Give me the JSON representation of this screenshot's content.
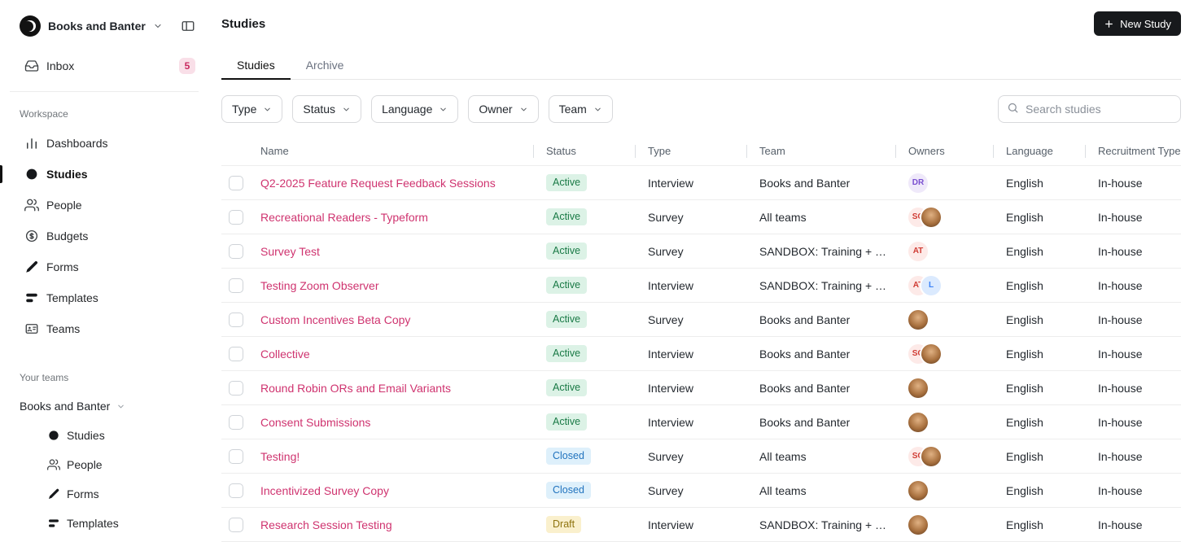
{
  "colors": {
    "accent_pink": "#cf336f",
    "primary_button_bg": "#17191c",
    "status_active_bg": "#dcf2e6",
    "status_active_fg": "#1a7a46",
    "status_closed_bg": "#def0fb",
    "status_closed_fg": "#2173be",
    "status_draft_bg": "#faf0cd",
    "status_draft_fg": "#8f740f",
    "inbox_badge_bg": "#f9dfe8",
    "inbox_badge_fg": "#c9295f"
  },
  "sidebar": {
    "org": {
      "name": "Books and Banter"
    },
    "inbox": {
      "label": "Inbox",
      "badge": "5"
    },
    "workspace_label": "Workspace",
    "workspace_items": [
      {
        "label": "Dashboards",
        "icon": "dashboards",
        "active": false
      },
      {
        "label": "Studies",
        "icon": "studies",
        "active": true
      },
      {
        "label": "People",
        "icon": "people",
        "active": false
      },
      {
        "label": "Budgets",
        "icon": "budgets",
        "active": false
      },
      {
        "label": "Forms",
        "icon": "forms",
        "active": false
      },
      {
        "label": "Templates",
        "icon": "templates",
        "active": false
      },
      {
        "label": "Teams",
        "icon": "teams",
        "active": false
      }
    ],
    "your_teams_label": "Your teams",
    "team": {
      "name": "Books and Banter"
    },
    "team_items": [
      {
        "label": "Studies",
        "icon": "studies"
      },
      {
        "label": "People",
        "icon": "people"
      },
      {
        "label": "Forms",
        "icon": "forms"
      },
      {
        "label": "Templates",
        "icon": "templates"
      }
    ]
  },
  "header": {
    "title": "Studies",
    "new_study_label": "New Study"
  },
  "tabs": [
    {
      "label": "Studies",
      "active": true
    },
    {
      "label": "Archive",
      "active": false
    }
  ],
  "filters": [
    {
      "label": "Type"
    },
    {
      "label": "Status"
    },
    {
      "label": "Language"
    },
    {
      "label": "Owner"
    },
    {
      "label": "Team"
    }
  ],
  "search": {
    "placeholder": "Search studies"
  },
  "table": {
    "columns": [
      "Name",
      "Status",
      "Type",
      "Team",
      "Owners",
      "Language",
      "Recruitment Type"
    ],
    "rows": [
      {
        "name": "Q2-2025 Feature Request Feedback Sessions",
        "status": "Active",
        "type": "Interview",
        "team": "Books and Banter",
        "owners": [
          {
            "kind": "initials",
            "text": "DR",
            "bg": "#efe9fa",
            "fg": "#7a4fd0"
          }
        ],
        "language": "English",
        "recruitment": "In-house"
      },
      {
        "name": "Recreational Readers - Typeform",
        "status": "Active",
        "type": "Survey",
        "team": "All teams",
        "owners": [
          {
            "kind": "initials",
            "text": "SO",
            "bg": "#fdeae8",
            "fg": "#d03c34"
          },
          {
            "kind": "photo"
          }
        ],
        "language": "English",
        "recruitment": "In-house"
      },
      {
        "name": "Survey Test",
        "status": "Active",
        "type": "Survey",
        "team": "SANDBOX: Training + …",
        "owners": [
          {
            "kind": "initials",
            "text": "AT",
            "bg": "#fdeae8",
            "fg": "#d03c34"
          }
        ],
        "language": "English",
        "recruitment": "In-house"
      },
      {
        "name": "Testing Zoom Observer",
        "status": "Active",
        "type": "Interview",
        "team": "SANDBOX: Training + …",
        "owners": [
          {
            "kind": "initials",
            "text": "AT",
            "bg": "#fdeae8",
            "fg": "#d03c34"
          },
          {
            "kind": "initials",
            "text": "L",
            "bg": "#dbeafe",
            "fg": "#3b82f6"
          }
        ],
        "language": "English",
        "recruitment": "In-house"
      },
      {
        "name": "Custom Incentives Beta Copy",
        "status": "Active",
        "type": "Survey",
        "team": "Books and Banter",
        "owners": [
          {
            "kind": "photo"
          }
        ],
        "language": "English",
        "recruitment": "In-house"
      },
      {
        "name": "Collective",
        "status": "Active",
        "type": "Interview",
        "team": "Books and Banter",
        "owners": [
          {
            "kind": "initials",
            "text": "SO",
            "bg": "#fdeae8",
            "fg": "#d03c34"
          },
          {
            "kind": "photo"
          }
        ],
        "language": "English",
        "recruitment": "In-house"
      },
      {
        "name": "Round Robin ORs and Email Variants",
        "status": "Active",
        "type": "Interview",
        "team": "Books and Banter",
        "owners": [
          {
            "kind": "photo"
          }
        ],
        "language": "English",
        "recruitment": "In-house"
      },
      {
        "name": "Consent Submissions",
        "status": "Active",
        "type": "Interview",
        "team": "Books and Banter",
        "owners": [
          {
            "kind": "photo"
          }
        ],
        "language": "English",
        "recruitment": "In-house"
      },
      {
        "name": "Testing!",
        "status": "Closed",
        "type": "Survey",
        "team": "All teams",
        "owners": [
          {
            "kind": "initials",
            "text": "SO",
            "bg": "#fdeae8",
            "fg": "#d03c34"
          },
          {
            "kind": "photo"
          }
        ],
        "language": "English",
        "recruitment": "In-house"
      },
      {
        "name": "Incentivized Survey Copy",
        "status": "Closed",
        "type": "Survey",
        "team": "All teams",
        "owners": [
          {
            "kind": "photo"
          }
        ],
        "language": "English",
        "recruitment": "In-house"
      },
      {
        "name": "Research Session Testing",
        "status": "Draft",
        "type": "Interview",
        "team": "SANDBOX: Training + …",
        "owners": [
          {
            "kind": "photo"
          }
        ],
        "language": "English",
        "recruitment": "In-house"
      }
    ]
  }
}
